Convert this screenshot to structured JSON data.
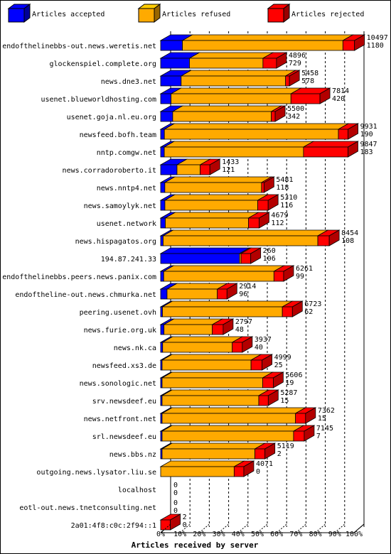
{
  "chart_data": {
    "type": "bar",
    "stacked": true,
    "orientation": "horizontal",
    "xlabel": "Articles received by server",
    "xticks": [
      "0%",
      "10%",
      "20%",
      "30%",
      "40%",
      "50%",
      "60%",
      "70%",
      "80%",
      "90%",
      "100%"
    ],
    "legend_position": "top",
    "series": [
      {
        "name": "Articles accepted",
        "color": "#0000ff"
      },
      {
        "name": "Articles refused",
        "color": "#ffaa00"
      },
      {
        "name": "Articles rejected",
        "color": "#ff0000"
      }
    ],
    "categories": [
      "endofthelinebbs-out.news.weretis.net",
      "glockenspiel.complete.org",
      "news.dne3.net",
      "usenet.blueworldhosting.com",
      "usenet.goja.nl.eu.org",
      "newsfeed.bofh.team",
      "nntp.comgw.net",
      "news.corradoroberto.it",
      "news.nntp4.net",
      "news.samoylyk.net",
      "usenet.network",
      "news.hispagatos.org",
      "194.87.241.33",
      "endofthelinebbs.peers.news.panix.com",
      "endoftheline-out.news.chmurka.net",
      "peering.usenet.ovh",
      "news.furie.org.uk",
      "news.nk.ca",
      "newsfeed.xs3.de",
      "news.sonologic.net",
      "srv.newsdeef.eu",
      "news.netfront.net",
      "srl.newsdeef.eu",
      "news.bbs.nz",
      "outgoing.news.lysator.liu.se",
      "localhost",
      "eotl-out.news.tnetconsulting.net",
      "2a01:4f8:c0c:2f94::1"
    ],
    "totals": [
      10497,
      4896,
      5458,
      7814,
      5500,
      9931,
      9847,
      1433,
      5481,
      5310,
      4679,
      8454,
      260,
      6261,
      2914,
      6723,
      2797,
      3937,
      4999,
      5606,
      5287,
      7362,
      7145,
      5119,
      4071,
      0,
      0,
      2
    ],
    "accepted": [
      1180,
      729,
      578,
      420,
      342,
      190,
      183,
      121,
      118,
      116,
      112,
      108,
      106,
      99,
      96,
      62,
      48,
      40,
      25,
      19,
      15,
      15,
      7,
      2,
      0,
      0,
      0,
      0
    ],
    "refused_pct": [
      83,
      38,
      54,
      62,
      51,
      90,
      72,
      12,
      50,
      48,
      43,
      80,
      0.8,
      57,
      26,
      62,
      25,
      36,
      46,
      52,
      50,
      69,
      68,
      48,
      38,
      0,
      0,
      0
    ],
    "rejected_pct": [
      6,
      7,
      2,
      15,
      2,
      5,
      23,
      5,
      1.3,
      5.4,
      5.5,
      5.9,
      5,
      5,
      5,
      5.2,
      5.6,
      5.2,
      5.7,
      5.5,
      4.9,
      5.2,
      5.5,
      5.2,
      5,
      0,
      0,
      5
    ]
  }
}
